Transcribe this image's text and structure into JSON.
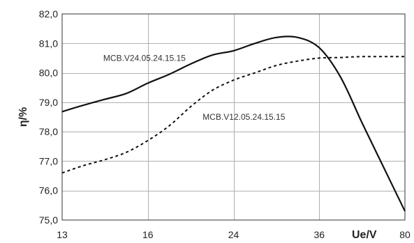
{
  "chart_data": {
    "type": "line",
    "ylabel": "η/%",
    "xlabel_unit": "Ue/V",
    "x_categories": [
      "13",
      "16",
      "24",
      "36",
      "80"
    ],
    "ylim": [
      75.0,
      82.0
    ],
    "y_ticks": [
      "75,0",
      "76,0",
      "77,0",
      "78,0",
      "79,0",
      "80,0",
      "81,0",
      "82,0"
    ],
    "grid": true,
    "series": [
      {
        "name": "MCB.V24.05.24.15.15",
        "style": "solid",
        "color": "#111111",
        "points": [
          [
            0.0,
            78.68
          ],
          [
            0.25,
            78.9
          ],
          [
            0.5,
            79.1
          ],
          [
            0.75,
            79.3
          ],
          [
            1.0,
            79.65
          ],
          [
            1.25,
            79.95
          ],
          [
            1.5,
            80.3
          ],
          [
            1.75,
            80.6
          ],
          [
            2.0,
            80.75
          ],
          [
            2.25,
            81.0
          ],
          [
            2.5,
            81.2
          ],
          [
            2.75,
            81.2
          ],
          [
            3.0,
            80.85
          ],
          [
            3.25,
            79.85
          ],
          [
            3.5,
            78.3
          ],
          [
            3.75,
            76.8
          ],
          [
            4.0,
            75.3
          ]
        ]
      },
      {
        "name": "MCB.V12.05.24.15.15",
        "style": "dotted",
        "color": "#111111",
        "points": [
          [
            0.0,
            76.6
          ],
          [
            0.25,
            76.85
          ],
          [
            0.5,
            77.05
          ],
          [
            0.75,
            77.3
          ],
          [
            1.0,
            77.7
          ],
          [
            1.25,
            78.2
          ],
          [
            1.5,
            78.85
          ],
          [
            1.75,
            79.4
          ],
          [
            2.0,
            79.75
          ],
          [
            2.25,
            80.0
          ],
          [
            2.5,
            80.25
          ],
          [
            2.75,
            80.4
          ],
          [
            3.0,
            80.5
          ],
          [
            3.25,
            80.52
          ],
          [
            3.5,
            80.55
          ],
          [
            4.0,
            80.55
          ]
        ]
      }
    ],
    "annotations": [
      {
        "text": "MCB.V24.05.24.15.15",
        "series": 0,
        "x": 0.48,
        "y": 80.4
      },
      {
        "text": "MCB.V12.05.24.15.15",
        "series": 1,
        "x": 1.64,
        "y": 78.4
      }
    ]
  }
}
